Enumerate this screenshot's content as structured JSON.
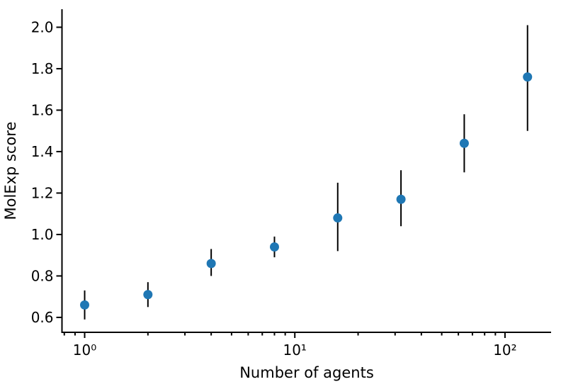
{
  "figure": {
    "background": "#ffffff"
  },
  "chart_data": {
    "type": "scatter",
    "subtype": "errorbar",
    "title": "",
    "xlabel": "Number of agents",
    "ylabel": "MolExp score",
    "xscale": "log",
    "yscale": "linear",
    "x": [
      1,
      2,
      4,
      8,
      16,
      32,
      64,
      128
    ],
    "y": [
      0.66,
      0.71,
      0.86,
      0.94,
      1.08,
      1.17,
      1.44,
      1.76
    ],
    "y_err_low": [
      0.59,
      0.65,
      0.8,
      0.89,
      0.92,
      1.04,
      1.3,
      1.5
    ],
    "y_err_high": [
      0.73,
      0.77,
      0.93,
      0.99,
      1.25,
      1.31,
      1.58,
      2.01
    ],
    "xlim": [
      0.78,
      165.7
    ],
    "ylim": [
      0.528,
      2.087
    ],
    "xticks": {
      "values": [
        1,
        10,
        100
      ],
      "labels": [
        "10⁰",
        "10¹",
        "10²"
      ]
    },
    "x_minor_ticks": [
      0.8,
      0.9,
      2,
      3,
      4,
      5,
      6,
      7,
      8,
      9,
      20,
      30,
      40,
      50,
      60,
      70,
      80,
      90
    ],
    "yticks": {
      "values": [
        0.6,
        0.8,
        1.0,
        1.2,
        1.4,
        1.6,
        1.8,
        2.0
      ],
      "labels": [
        "0.6",
        "0.8",
        "1.0",
        "1.2",
        "1.4",
        "1.6",
        "1.8",
        "2.0"
      ]
    },
    "grid": false,
    "legend": null,
    "marker_color": "#1f77b4",
    "errorbar_color": "#000000",
    "axis_color": "#000000"
  }
}
